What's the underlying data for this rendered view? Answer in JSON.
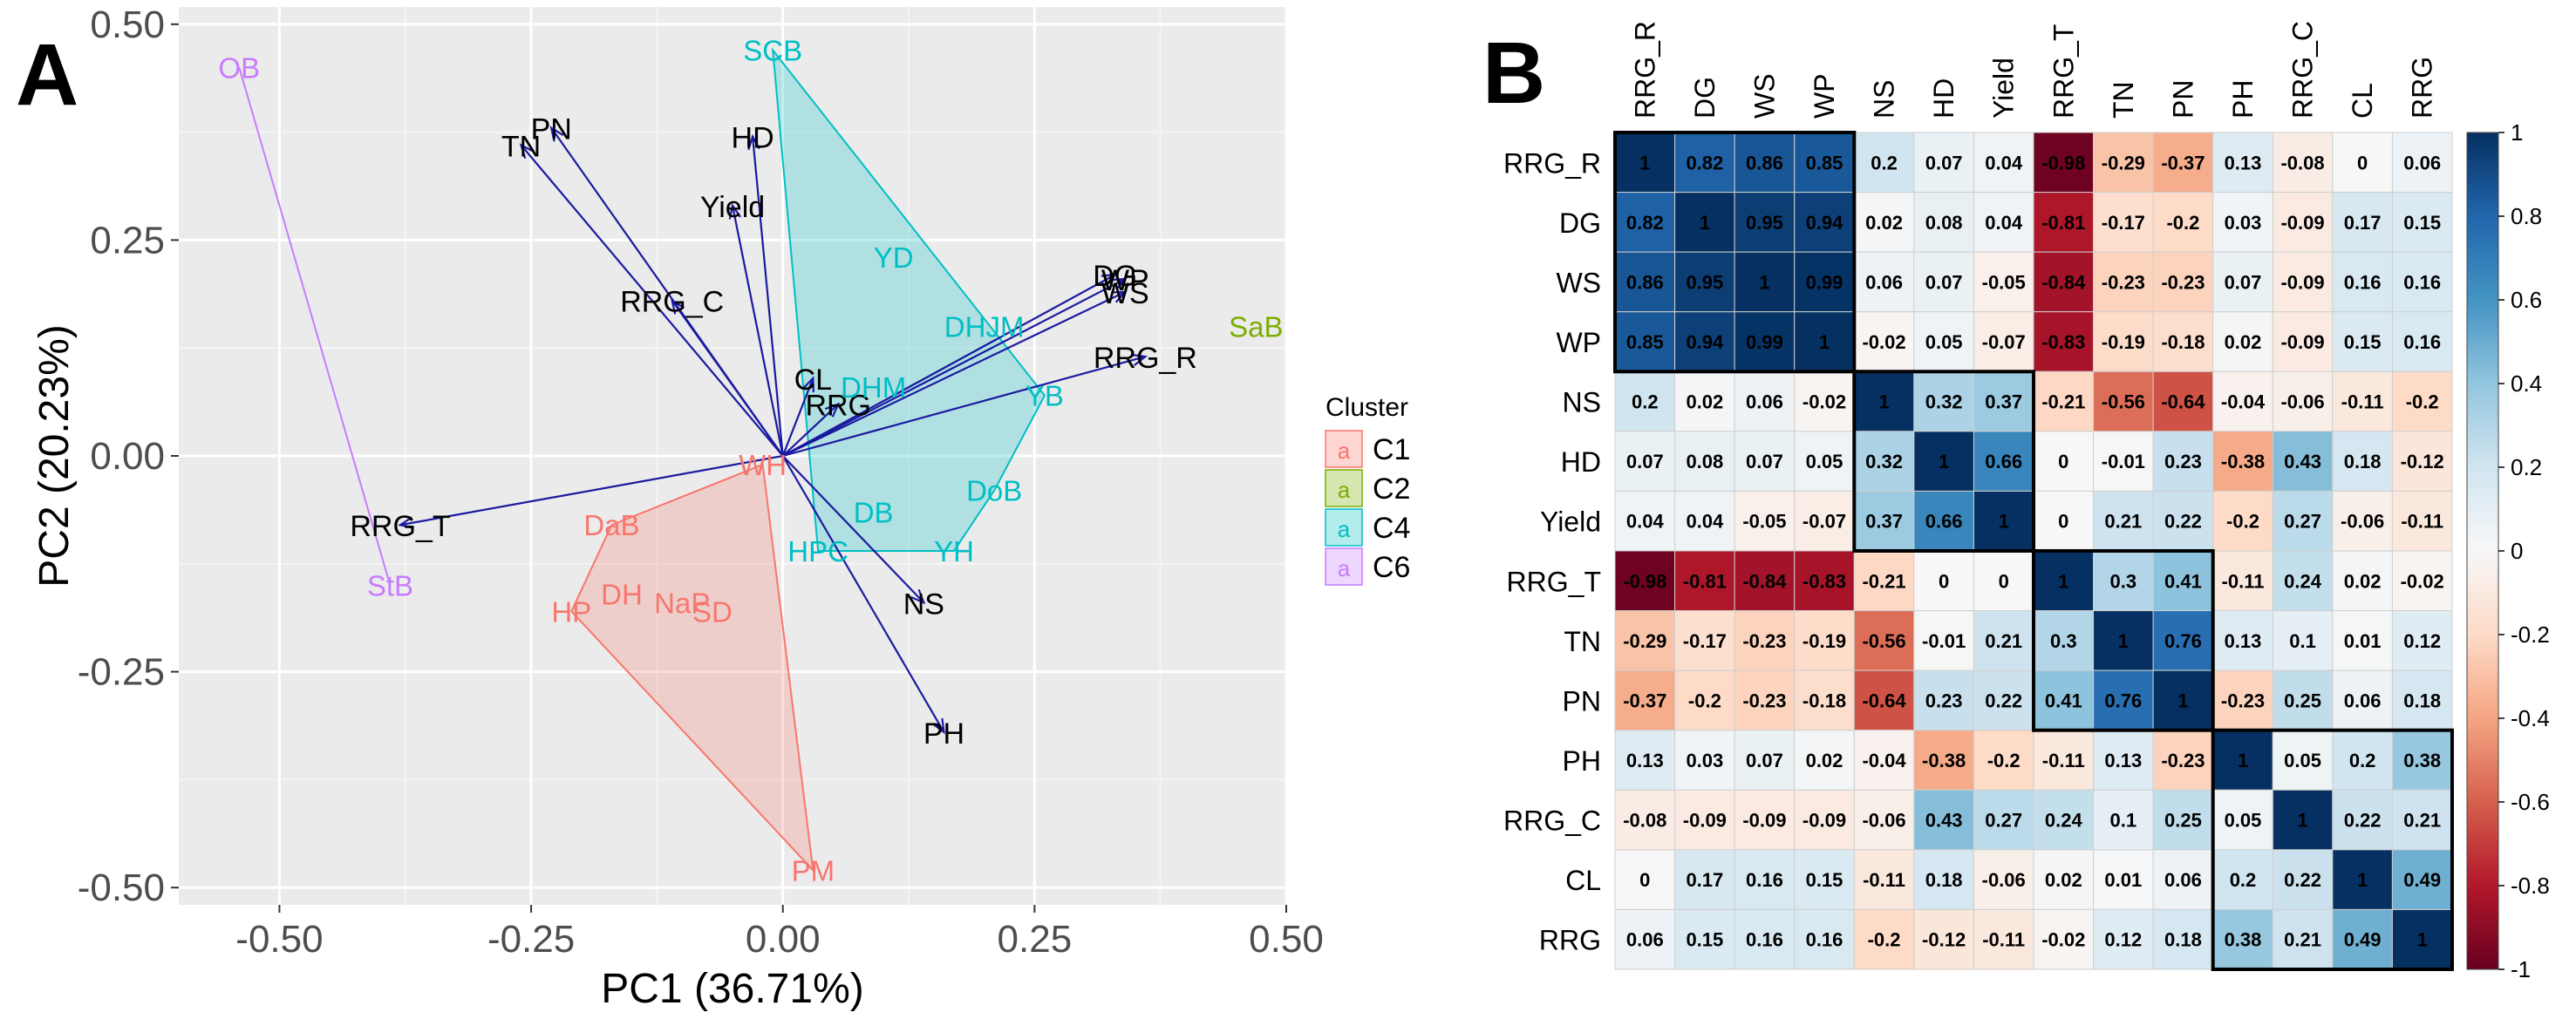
{
  "panel_a_label": "A",
  "panel_b_label": "B",
  "chart_data": [
    {
      "type": "scatter",
      "subtype": "pca-biplot",
      "xlabel": "PC1 (36.71%)",
      "ylabel": "PC2 (20.23%)",
      "xlim": [
        -0.6,
        0.5
      ],
      "ylim": [
        -0.52,
        0.52
      ],
      "xticks": [
        -0.5,
        -0.25,
        0.0,
        0.25,
        0.5
      ],
      "xtick_labels": [
        "-0.50",
        "-0.25",
        "0.00",
        "0.25",
        "0.50"
      ],
      "yticks": [
        -0.5,
        -0.25,
        0.0,
        0.25,
        0.5
      ],
      "ytick_labels": [
        "-0.50",
        "-0.25",
        "0.00",
        "0.25",
        "0.50"
      ],
      "grid": true,
      "legend": {
        "title": "Cluster",
        "position": "right",
        "key_glyph": "a",
        "items": [
          {
            "name": "C1",
            "color": "#f8766d"
          },
          {
            "name": "C2",
            "color": "#7cae00"
          },
          {
            "name": "C4",
            "color": "#00bfc4"
          },
          {
            "name": "C6",
            "color": "#c77cff"
          }
        ]
      },
      "vector_color": "#1a1aa0",
      "vectors": [
        {
          "name": "RRG_R",
          "x": 0.36,
          "y": 0.115
        },
        {
          "name": "DG",
          "x": 0.33,
          "y": 0.21
        },
        {
          "name": "WP",
          "x": 0.34,
          "y": 0.205
        },
        {
          "name": "WS",
          "x": 0.34,
          "y": 0.19
        },
        {
          "name": "NS",
          "x": 0.14,
          "y": -0.17
        },
        {
          "name": "HD",
          "x": -0.03,
          "y": 0.37
        },
        {
          "name": "Yield",
          "x": -0.05,
          "y": 0.29
        },
        {
          "name": "RRG_T",
          "x": -0.38,
          "y": -0.08
        },
        {
          "name": "TN",
          "x": -0.26,
          "y": 0.36
        },
        {
          "name": "PN",
          "x": -0.23,
          "y": 0.38
        },
        {
          "name": "PH",
          "x": 0.16,
          "y": -0.32
        },
        {
          "name": "RRG_C",
          "x": -0.11,
          "y": 0.18
        },
        {
          "name": "CL",
          "x": 0.03,
          "y": 0.09
        },
        {
          "name": "RRG",
          "x": 0.055,
          "y": 0.06
        }
      ],
      "points": [
        {
          "label": "OB",
          "cluster": "C6",
          "x": -0.54,
          "y": 0.45
        },
        {
          "label": "StB",
          "cluster": "C6",
          "x": -0.39,
          "y": -0.15
        },
        {
          "label": "SaB",
          "cluster": "C2",
          "x": 0.47,
          "y": 0.15
        },
        {
          "label": "SCB",
          "cluster": "C4",
          "x": -0.01,
          "y": 0.47
        },
        {
          "label": "YD",
          "cluster": "C4",
          "x": 0.11,
          "y": 0.23
        },
        {
          "label": "DHJM",
          "cluster": "C4",
          "x": 0.2,
          "y": 0.15
        },
        {
          "label": "YB",
          "cluster": "C4",
          "x": 0.26,
          "y": 0.07
        },
        {
          "label": "DoB",
          "cluster": "C4",
          "x": 0.21,
          "y": -0.04
        },
        {
          "label": "YH",
          "cluster": "C4",
          "x": 0.17,
          "y": -0.11
        },
        {
          "label": "DB",
          "cluster": "C4",
          "x": 0.09,
          "y": -0.065
        },
        {
          "label": "HPC",
          "cluster": "C4",
          "x": 0.035,
          "y": -0.11
        },
        {
          "label": "DHM",
          "cluster": "C4",
          "x": 0.09,
          "y": 0.08
        },
        {
          "label": "DaB",
          "cluster": "C1",
          "x": -0.17,
          "y": -0.08
        },
        {
          "label": "DH",
          "cluster": "C1",
          "x": -0.16,
          "y": -0.16
        },
        {
          "label": "HP",
          "cluster": "C1",
          "x": -0.21,
          "y": -0.18
        },
        {
          "label": "NaP",
          "cluster": "C1",
          "x": -0.1,
          "y": -0.17
        },
        {
          "label": "SD",
          "cluster": "C1",
          "x": -0.07,
          "y": -0.18
        },
        {
          "label": "WH",
          "cluster": "C1",
          "x": -0.02,
          "y": -0.01
        },
        {
          "label": "PM",
          "cluster": "C1",
          "x": 0.03,
          "y": -0.48
        }
      ]
    },
    {
      "type": "heatmap",
      "subtype": "correlation-matrix",
      "labels": [
        "RRG_R",
        "DG",
        "WS",
        "WP",
        "NS",
        "HD",
        "Yield",
        "RRG_T",
        "TN",
        "PN",
        "PH",
        "RRG_C",
        "CL",
        "RRG"
      ],
      "values": [
        [
          1,
          0.82,
          0.86,
          0.85,
          0.2,
          0.07,
          0.04,
          -0.98,
          -0.29,
          -0.37,
          0.13,
          -0.08,
          0,
          0.06
        ],
        [
          0.82,
          1,
          0.95,
          0.94,
          0.02,
          0.08,
          0.04,
          -0.81,
          -0.17,
          -0.2,
          0.03,
          -0.09,
          0.17,
          0.15
        ],
        [
          0.86,
          0.95,
          1,
          0.99,
          0.06,
          0.07,
          -0.05,
          -0.84,
          -0.23,
          -0.23,
          0.07,
          -0.09,
          0.16,
          0.16
        ],
        [
          0.85,
          0.94,
          0.99,
          1,
          -0.02,
          0.05,
          -0.07,
          -0.83,
          -0.19,
          -0.18,
          0.02,
          -0.09,
          0.15,
          0.16
        ],
        [
          0.2,
          0.02,
          0.06,
          -0.02,
          1,
          0.32,
          0.37,
          -0.21,
          -0.56,
          -0.64,
          -0.04,
          -0.06,
          -0.11,
          -0.2
        ],
        [
          0.07,
          0.08,
          0.07,
          0.05,
          0.32,
          1,
          0.66,
          0,
          -0.01,
          0.23,
          -0.38,
          0.43,
          0.18,
          -0.12
        ],
        [
          0.04,
          0.04,
          -0.05,
          -0.07,
          0.37,
          0.66,
          1,
          0,
          0.21,
          0.22,
          -0.2,
          0.27,
          -0.06,
          -0.11
        ],
        [
          -0.98,
          -0.81,
          -0.84,
          -0.83,
          -0.21,
          0,
          0,
          1,
          0.3,
          0.41,
          -0.11,
          0.24,
          0.02,
          -0.02
        ],
        [
          -0.29,
          -0.17,
          -0.23,
          -0.19,
          -0.56,
          -0.01,
          0.21,
          0.3,
          1,
          0.76,
          0.13,
          0.1,
          0.01,
          0.12
        ],
        [
          -0.37,
          -0.2,
          -0.23,
          -0.18,
          -0.64,
          0.23,
          0.22,
          0.41,
          0.76,
          1,
          -0.23,
          0.25,
          0.06,
          0.18
        ],
        [
          0.13,
          0.03,
          0.07,
          0.02,
          -0.04,
          -0.38,
          -0.2,
          -0.11,
          0.13,
          -0.23,
          1,
          0.05,
          0.2,
          0.38
        ],
        [
          -0.08,
          -0.09,
          -0.09,
          -0.09,
          -0.06,
          0.43,
          0.27,
          0.24,
          0.1,
          0.25,
          0.05,
          1,
          0.22,
          0.21
        ],
        [
          0,
          0.17,
          0.16,
          0.15,
          -0.11,
          0.18,
          -0.06,
          0.02,
          0.01,
          0.06,
          0.2,
          0.22,
          1,
          0.49
        ],
        [
          0.06,
          0.15,
          0.16,
          0.16,
          -0.2,
          -0.12,
          -0.11,
          -0.02,
          0.12,
          0.18,
          0.38,
          0.21,
          0.49,
          1
        ]
      ],
      "cluster_blocks": [
        [
          0,
          3
        ],
        [
          4,
          6
        ],
        [
          7,
          9
        ],
        [
          10,
          13
        ]
      ],
      "colorbar": {
        "range": [
          -1,
          1
        ],
        "ticks": [
          1,
          0.8,
          0.6,
          0.4,
          0.2,
          0,
          -0.2,
          -0.4,
          -0.6,
          -0.8,
          -1
        ],
        "tick_labels": [
          "1",
          "0.8",
          "0.6",
          "0.4",
          "0.2",
          "0",
          "-0.2",
          "-0.4",
          "-0.6",
          "-0.8",
          "-1"
        ],
        "colors": {
          "neg": "#67001f",
          "mid": "#f7f7f7",
          "pos": "#053061"
        }
      }
    }
  ]
}
